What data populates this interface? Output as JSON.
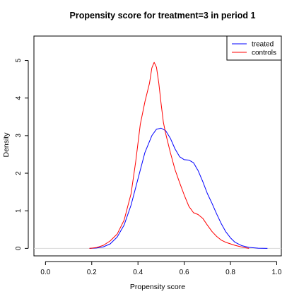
{
  "chart_data": {
    "type": "line",
    "title": "Propensity score for treatment=3 in period 1",
    "xlabel": "Propensity score",
    "ylabel": "Density",
    "xlim": [
      -0.05,
      1.02
    ],
    "ylim": [
      -0.2,
      5.65
    ],
    "xticks": [
      0.0,
      0.2,
      0.4,
      0.6,
      0.8,
      1.0
    ],
    "xtick_labels": [
      "0.0",
      "0.2",
      "0.4",
      "0.6",
      "0.8",
      "1.0"
    ],
    "yticks": [
      0,
      1,
      2,
      3,
      4,
      5
    ],
    "ytick_labels": [
      "0",
      "1",
      "2",
      "3",
      "4",
      "5"
    ],
    "legend_position": "top-right",
    "grid": false,
    "series": [
      {
        "name": "treated",
        "color": "#0000ff",
        "points": [
          [
            0.19,
            0.0
          ],
          [
            0.22,
            0.01
          ],
          [
            0.25,
            0.04
          ],
          [
            0.28,
            0.12
          ],
          [
            0.31,
            0.3
          ],
          [
            0.34,
            0.62
          ],
          [
            0.37,
            1.15
          ],
          [
            0.4,
            1.85
          ],
          [
            0.43,
            2.55
          ],
          [
            0.46,
            3.0
          ],
          [
            0.48,
            3.17
          ],
          [
            0.5,
            3.2
          ],
          [
            0.52,
            3.13
          ],
          [
            0.54,
            2.93
          ],
          [
            0.56,
            2.65
          ],
          [
            0.58,
            2.44
          ],
          [
            0.6,
            2.36
          ],
          [
            0.62,
            2.35
          ],
          [
            0.64,
            2.28
          ],
          [
            0.66,
            2.07
          ],
          [
            0.68,
            1.78
          ],
          [
            0.7,
            1.46
          ],
          [
            0.72,
            1.2
          ],
          [
            0.74,
            0.92
          ],
          [
            0.76,
            0.66
          ],
          [
            0.78,
            0.44
          ],
          [
            0.8,
            0.28
          ],
          [
            0.82,
            0.16
          ],
          [
            0.85,
            0.07
          ],
          [
            0.88,
            0.025
          ],
          [
            0.92,
            0.005
          ],
          [
            0.96,
            0.0
          ]
        ]
      },
      {
        "name": "controls",
        "color": "#ff0000",
        "points": [
          [
            0.19,
            0.0
          ],
          [
            0.22,
            0.02
          ],
          [
            0.25,
            0.08
          ],
          [
            0.28,
            0.2
          ],
          [
            0.31,
            0.38
          ],
          [
            0.34,
            0.75
          ],
          [
            0.37,
            1.45
          ],
          [
            0.39,
            2.3
          ],
          [
            0.41,
            3.3
          ],
          [
            0.43,
            3.9
          ],
          [
            0.45,
            4.4
          ],
          [
            0.46,
            4.8
          ],
          [
            0.47,
            4.95
          ],
          [
            0.48,
            4.82
          ],
          [
            0.49,
            4.4
          ],
          [
            0.5,
            3.85
          ],
          [
            0.51,
            3.35
          ],
          [
            0.52,
            3.05
          ],
          [
            0.54,
            2.55
          ],
          [
            0.56,
            2.1
          ],
          [
            0.58,
            1.75
          ],
          [
            0.6,
            1.42
          ],
          [
            0.62,
            1.12
          ],
          [
            0.64,
            0.95
          ],
          [
            0.66,
            0.9
          ],
          [
            0.68,
            0.8
          ],
          [
            0.7,
            0.62
          ],
          [
            0.72,
            0.45
          ],
          [
            0.74,
            0.32
          ],
          [
            0.76,
            0.22
          ],
          [
            0.78,
            0.16
          ],
          [
            0.8,
            0.12
          ],
          [
            0.82,
            0.08
          ],
          [
            0.84,
            0.05
          ],
          [
            0.86,
            0.02
          ],
          [
            0.88,
            0.0
          ]
        ]
      }
    ]
  }
}
